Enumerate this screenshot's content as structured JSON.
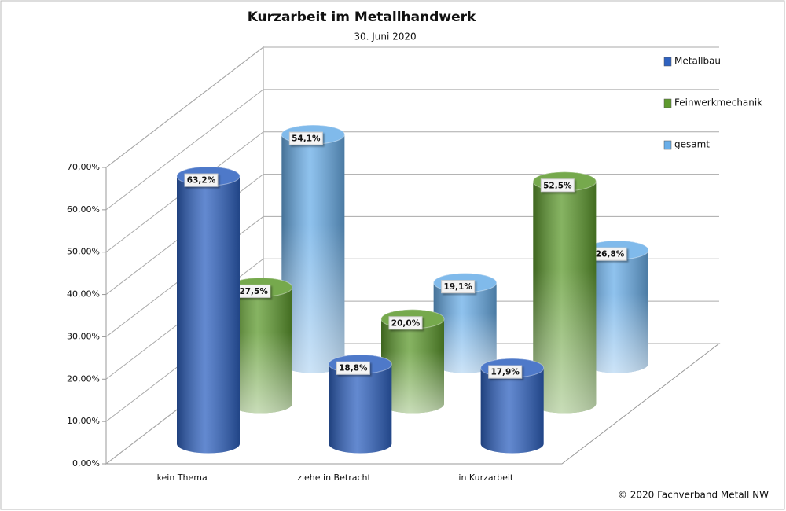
{
  "chart_data": {
    "type": "bar3d",
    "title": "Kurzarbeit im Metallhandwerk",
    "subtitle": "30. Juni 2020",
    "footer": "© 2020 Fachverband Metall NW",
    "categories": [
      "kein Thema",
      "ziehe in Betracht",
      "in Kurzarbeit"
    ],
    "series": [
      {
        "name": "Metallbau",
        "color": "#2f62c0",
        "values": [
          63.2,
          18.8,
          17.9
        ],
        "value_labels": [
          "63,2%",
          "18,8%",
          "17,9%"
        ]
      },
      {
        "name": "Feinwerkmechanik",
        "color": "#5e9a2e",
        "values": [
          27.5,
          20.0,
          52.5
        ],
        "value_labels": [
          "27,5%",
          "20,0%",
          "52,5%"
        ]
      },
      {
        "name": "gesamt",
        "color": "#6aaee8",
        "values": [
          54.1,
          19.1,
          26.8
        ],
        "value_labels": [
          "54,1%",
          "19,1%",
          "26,8%"
        ]
      }
    ],
    "ylim": [
      0,
      70
    ],
    "yticks": [
      {
        "value": 0,
        "label": "0,00%"
      },
      {
        "value": 10,
        "label": "10,00%"
      },
      {
        "value": 20,
        "label": "20,00%"
      },
      {
        "value": 30,
        "label": "30,00%"
      },
      {
        "value": 40,
        "label": "40,00%"
      },
      {
        "value": 50,
        "label": "50,00%"
      },
      {
        "value": 60,
        "label": "60,00%"
      },
      {
        "value": 70,
        "label": "70,00%"
      }
    ],
    "grid": true,
    "legend": "right"
  }
}
